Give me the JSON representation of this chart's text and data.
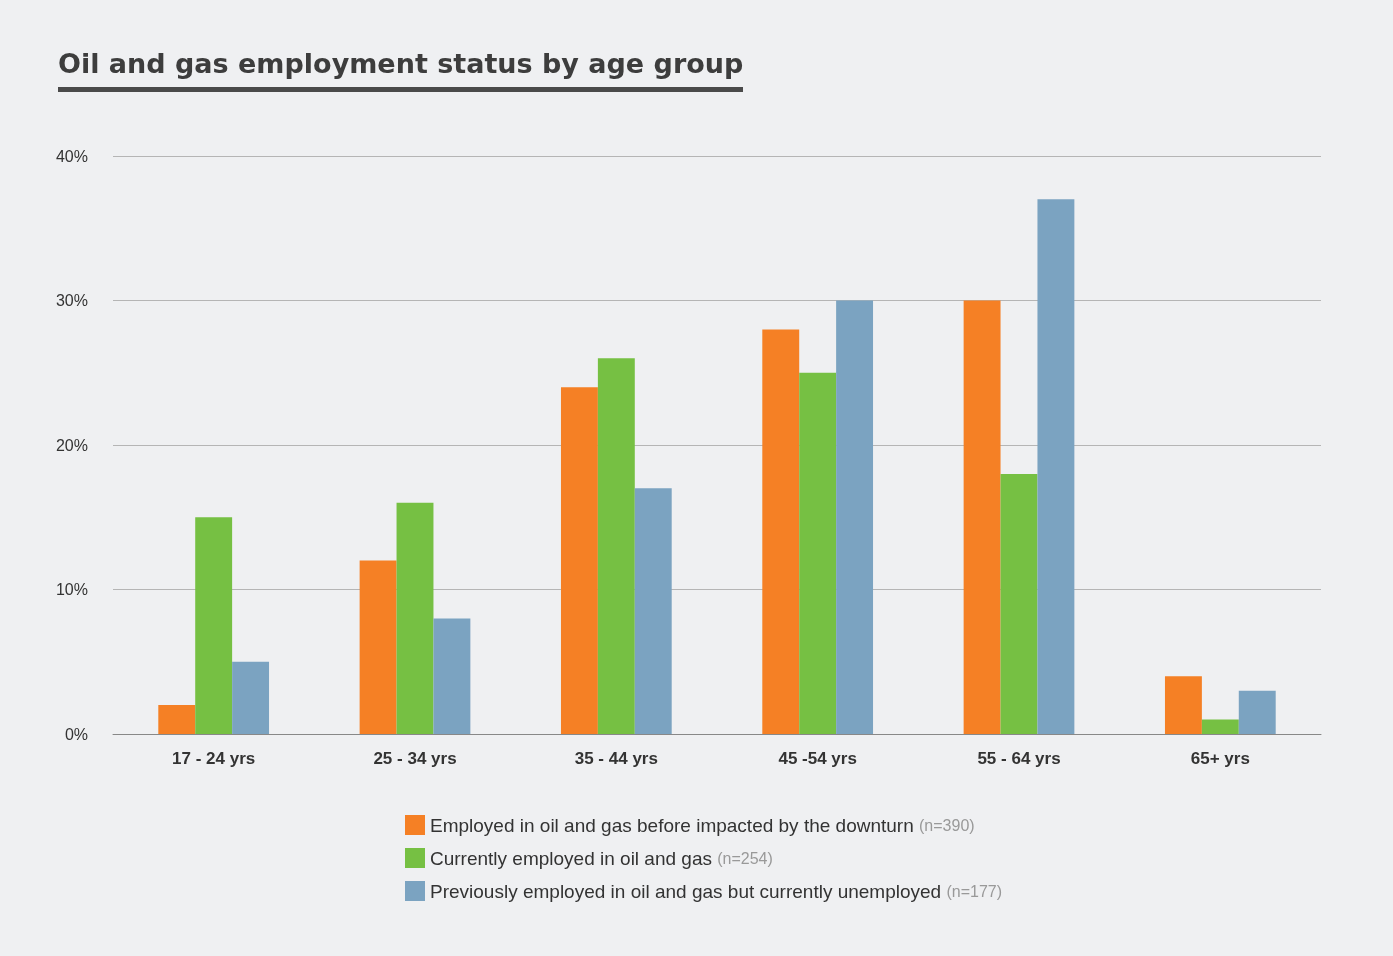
{
  "chart_data": {
    "type": "bar",
    "title": "Oil and gas employment status by age group",
    "categories": [
      "17 - 24 yrs",
      "25 - 34 yrs",
      "35 - 44 yrs",
      "45 -54 yrs",
      "55 - 64 yrs",
      "65+ yrs"
    ],
    "series": [
      {
        "name": "Employed in oil and gas before impacted by the downturn (n=390)",
        "color": "#f58025",
        "values": [
          2,
          12,
          24,
          28,
          30,
          4
        ]
      },
      {
        "name": "Currently employed in oil and gas (n=254)",
        "color": "#76c043",
        "values": [
          15,
          16,
          26,
          25,
          18,
          1
        ]
      },
      {
        "name": "Previously employed in oil and gas but currently unemployed (n=177)",
        "color": "#7ba3c1",
        "values": [
          5,
          8,
          17,
          30,
          37,
          3
        ]
      }
    ],
    "ylim": [
      0,
      40
    ],
    "yticks": [
      {
        "value": 0,
        "label": "0%"
      },
      {
        "value": 10,
        "label": "10%"
      },
      {
        "value": 20,
        "label": "20%"
      },
      {
        "value": 30,
        "label": "30%"
      },
      {
        "value": 40,
        "label": "40%"
      }
    ],
    "grid": "y",
    "legend": "bottom"
  }
}
